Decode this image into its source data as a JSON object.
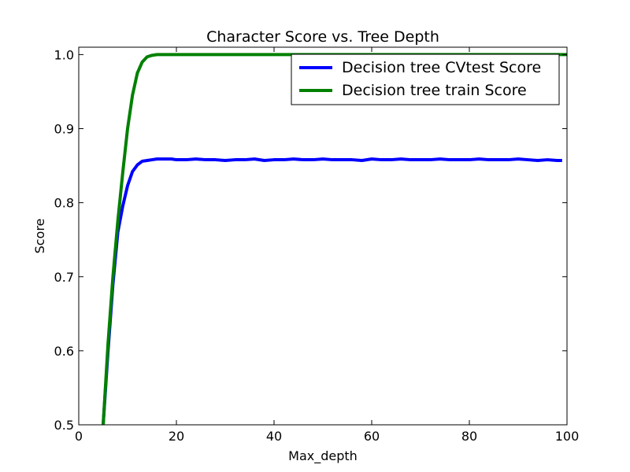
{
  "chart_data": {
    "type": "line",
    "title": "Character Score vs. Tree Depth",
    "xlabel": "Max_depth",
    "ylabel": "Score",
    "xlim": [
      0,
      100
    ],
    "ylim": [
      0.5,
      1.01
    ],
    "xticks": [
      0,
      20,
      40,
      60,
      80,
      100
    ],
    "xtick_labels": [
      "0",
      "20",
      "40",
      "60",
      "80",
      "100"
    ],
    "yticks": [
      0.5,
      0.6,
      0.7,
      0.8,
      0.9,
      1.0
    ],
    "ytick_labels": [
      "0.5",
      "0.6",
      "0.7",
      "0.8",
      "0.9",
      "1.0"
    ],
    "grid": false,
    "legend_position": "top-right",
    "series": [
      {
        "name": "Decision tree CVtest Score",
        "color": "#0000ff",
        "x": [
          5,
          6,
          7,
          8,
          9,
          10,
          11,
          12,
          13,
          14,
          15,
          16,
          17,
          18,
          19,
          20,
          22,
          24,
          26,
          28,
          30,
          32,
          34,
          36,
          38,
          40,
          42,
          44,
          46,
          48,
          50,
          52,
          54,
          56,
          58,
          60,
          62,
          64,
          66,
          68,
          70,
          72,
          74,
          76,
          78,
          80,
          82,
          84,
          86,
          88,
          90,
          92,
          94,
          96,
          98,
          99
        ],
        "y": [
          0.5,
          0.6,
          0.69,
          0.76,
          0.795,
          0.823,
          0.842,
          0.851,
          0.856,
          0.857,
          0.858,
          0.859,
          0.859,
          0.859,
          0.859,
          0.858,
          0.858,
          0.859,
          0.858,
          0.858,
          0.857,
          0.858,
          0.858,
          0.859,
          0.857,
          0.858,
          0.858,
          0.859,
          0.858,
          0.858,
          0.859,
          0.858,
          0.858,
          0.858,
          0.857,
          0.859,
          0.858,
          0.858,
          0.859,
          0.858,
          0.858,
          0.858,
          0.859,
          0.858,
          0.858,
          0.858,
          0.859,
          0.858,
          0.858,
          0.858,
          0.859,
          0.858,
          0.857,
          0.858,
          0.857,
          0.857
        ]
      },
      {
        "name": "Decision tree train Score",
        "color": "#008000",
        "x": [
          5,
          6,
          7,
          8,
          9,
          10,
          11,
          12,
          13,
          14,
          15,
          16,
          17,
          18,
          19,
          20,
          25,
          30,
          40,
          50,
          60,
          70,
          80,
          90,
          100
        ],
        "y": [
          0.5,
          0.61,
          0.7,
          0.775,
          0.84,
          0.9,
          0.945,
          0.975,
          0.99,
          0.997,
          0.999,
          1.0,
          1.0,
          1.0,
          1.0,
          1.0,
          1.0,
          1.0,
          1.0,
          1.0,
          1.0,
          1.0,
          1.0,
          1.0,
          1.0
        ]
      }
    ]
  }
}
